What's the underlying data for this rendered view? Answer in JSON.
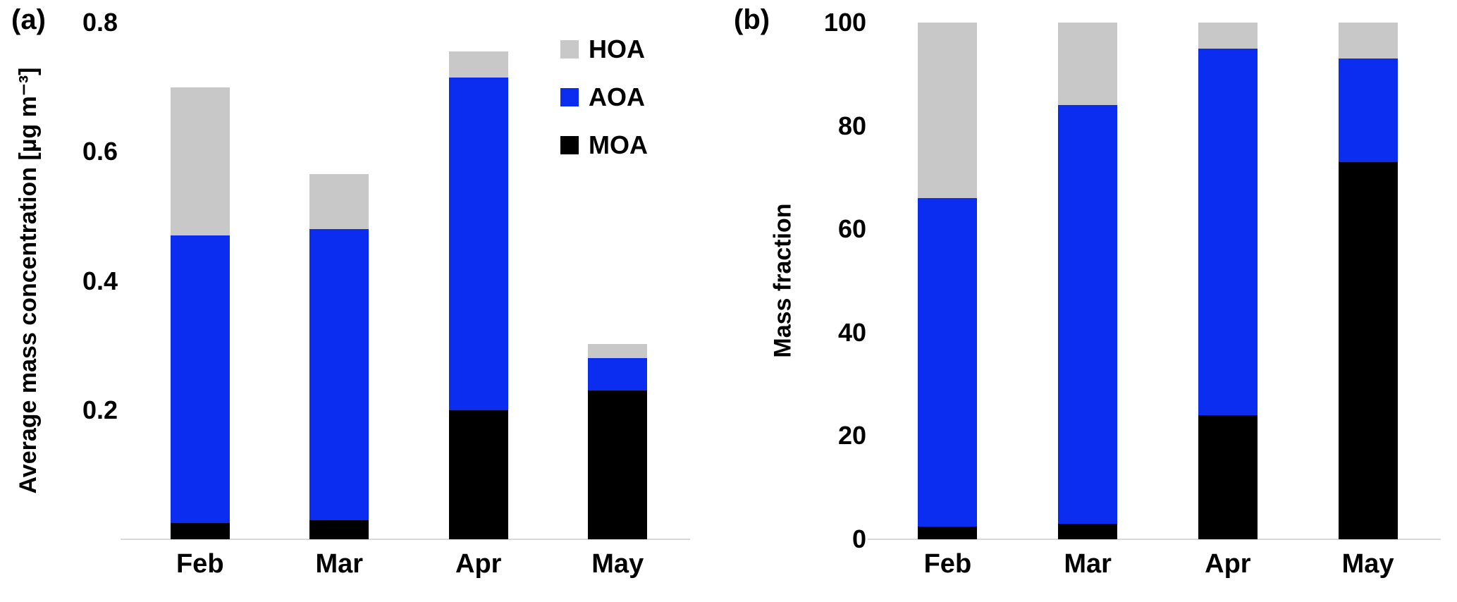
{
  "figure": {
    "background": "#ffffff"
  },
  "colors": {
    "hoa": "#c8c8c8",
    "aoa": "#0a2df0",
    "moa": "#000000",
    "axis_line": "#d9d9d9"
  },
  "legend": {
    "position": "upper-right-of-panel-a",
    "items": [
      {
        "label": "HOA",
        "color": "#c8c8c8"
      },
      {
        "label": "AOA",
        "color": "#0a2df0"
      },
      {
        "label": "MOA",
        "color": "#000000"
      }
    ]
  },
  "chart_data": [
    {
      "type": "bar",
      "stacked": true,
      "panel_label": "(a)",
      "title": "",
      "xlabel": "",
      "ylabel": "Average mass concentration [µg m⁻³]",
      "categories": [
        "Feb",
        "Mar",
        "Apr",
        "May"
      ],
      "series": [
        {
          "name": "MOA",
          "color": "#000000",
          "values": [
            0.025,
            0.03,
            0.2,
            0.23
          ]
        },
        {
          "name": "AOA",
          "color": "#0a2df0",
          "values": [
            0.445,
            0.45,
            0.515,
            0.05
          ]
        },
        {
          "name": "HOA",
          "color": "#c8c8c8",
          "values": [
            0.23,
            0.085,
            0.04,
            0.022
          ]
        }
      ],
      "totals": [
        0.7,
        0.565,
        0.755,
        0.302
      ],
      "ylim": [
        0,
        0.8
      ],
      "yticks": [
        0.2,
        0.4,
        0.6,
        0.8
      ],
      "ytick_labels": [
        "0.2",
        "0.4",
        "0.6",
        "0.8"
      ],
      "grid": false,
      "legend_position": "upper right"
    },
    {
      "type": "bar",
      "stacked": true,
      "panel_label": "(b)",
      "title": "",
      "xlabel": "",
      "ylabel": "Mass fraction",
      "categories": [
        "Feb",
        "Mar",
        "Apr",
        "May"
      ],
      "series": [
        {
          "name": "MOA",
          "color": "#000000",
          "values": [
            2.5,
            3,
            24,
            73
          ]
        },
        {
          "name": "AOA",
          "color": "#0a2df0",
          "values": [
            63.5,
            81,
            71,
            20
          ]
        },
        {
          "name": "HOA",
          "color": "#c8c8c8",
          "values": [
            34,
            16,
            5,
            7
          ]
        }
      ],
      "totals": [
        100,
        100,
        100,
        100
      ],
      "ylim": [
        0,
        100
      ],
      "yticks": [
        0,
        20,
        40,
        60,
        80,
        100
      ],
      "ytick_labels": [
        "0",
        "20",
        "40",
        "60",
        "80",
        "100"
      ],
      "grid": false,
      "legend_position": "none"
    }
  ]
}
